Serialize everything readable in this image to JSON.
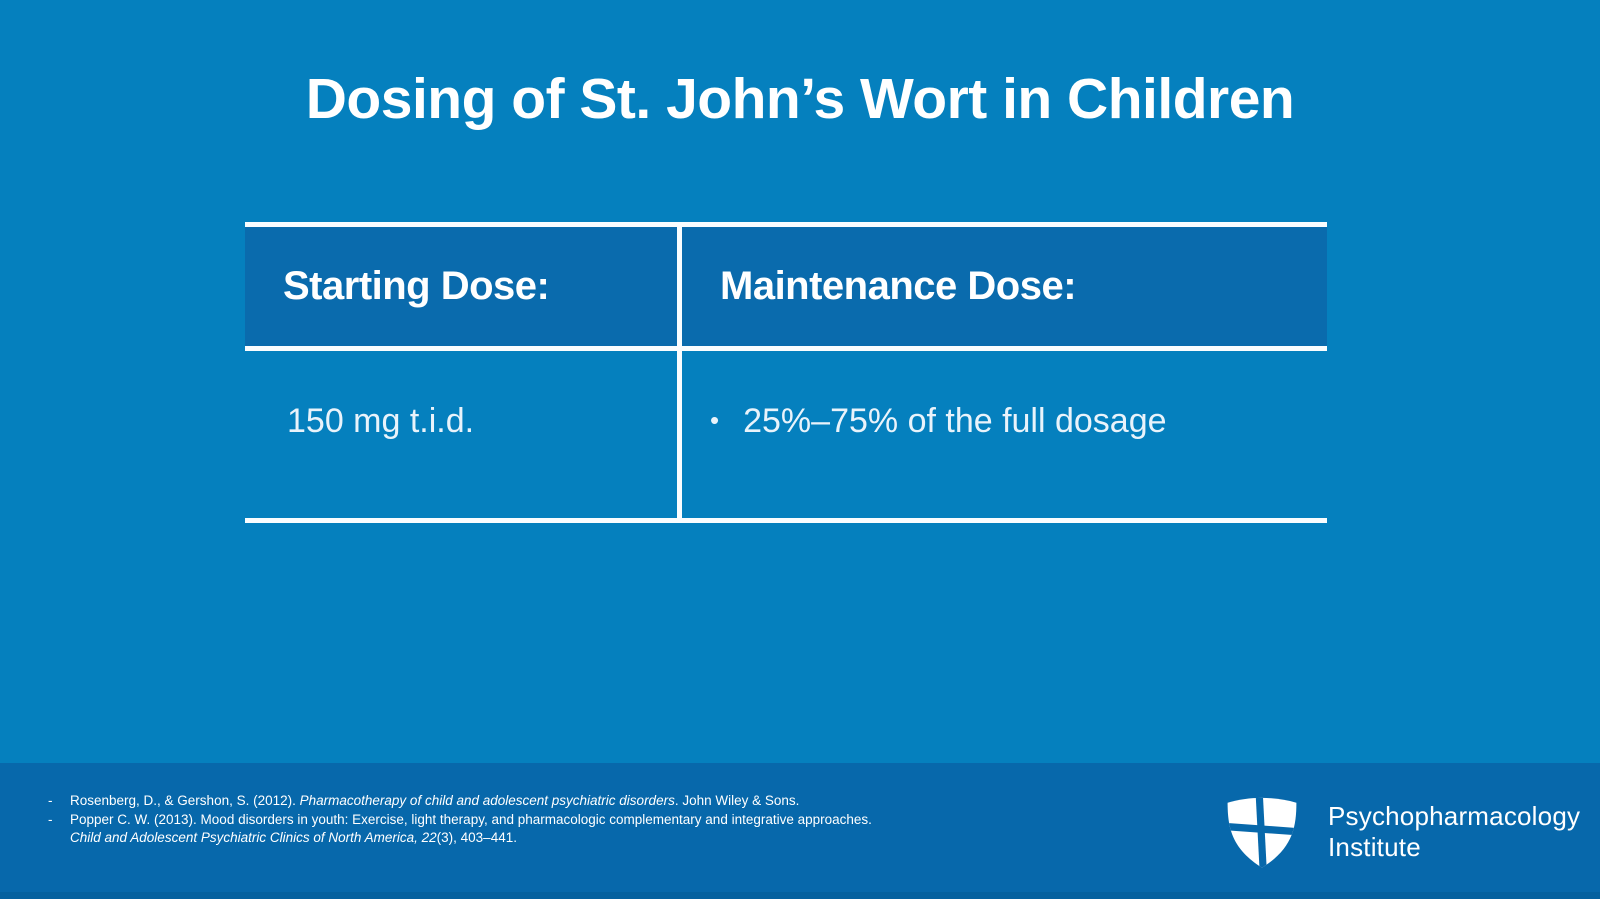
{
  "slide": {
    "title": "Dosing of St. John’s Wort in Children"
  },
  "table": {
    "headers": [
      {
        "label": "Starting Dose:"
      },
      {
        "label": "Maintenance Dose:"
      }
    ],
    "row": {
      "starting": "150 mg t.i.d.",
      "maintenance_bullet": "•",
      "maintenance": "25%–75% of the full dosage"
    }
  },
  "references": {
    "marker": "-",
    "items": [
      {
        "segments": [
          {
            "text": "Rosenberg, D., & Gershon, S. (2012). ",
            "italic": false
          },
          {
            "text": "Pharmacotherapy of child and adolescent psychiatric disorders",
            "italic": true
          },
          {
            "text": ". John Wiley & Sons.",
            "italic": false
          }
        ]
      },
      {
        "segments": [
          {
            "text": "Popper C. W. (2013). Mood disorders in youth: Exercise, light therapy, and pharmacologic complementary and integrative approaches. ",
            "italic": false
          },
          {
            "text": "Child and Adolescent Psychiatric Clinics of North America, 22",
            "italic": true
          },
          {
            "text": "(3), 403–441.",
            "italic": false
          }
        ]
      }
    ]
  },
  "logo": {
    "icon": "shield-cross-icon",
    "line1": "Psychopharmacology",
    "line2": "Institute"
  },
  "colors": {
    "background": "#0580BE",
    "table_header_fill": "#0A6BAD",
    "footer_band": "#0768AB",
    "bottom_strip": "#05619F",
    "border_white": "#FAFDFF",
    "text_white": "#FFFFFF",
    "body_text": "#E9F3FB"
  }
}
